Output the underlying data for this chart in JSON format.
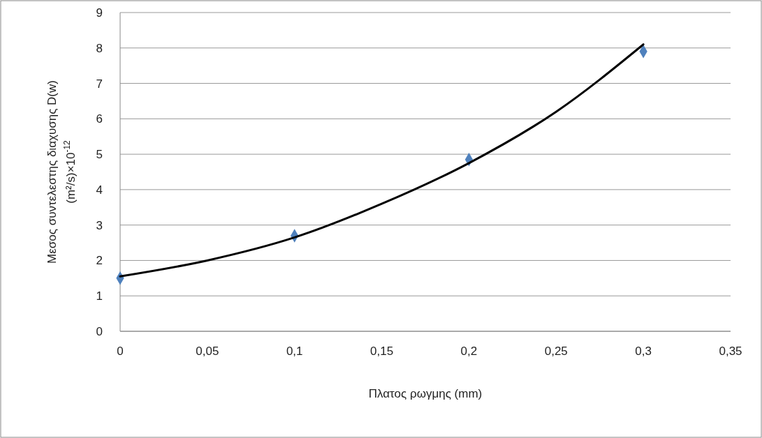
{
  "chart_data": {
    "type": "scatter",
    "xlabel": "Πλατος ρωγμης (mm)",
    "ylabel": "Μεσος συντελεστης διαχυσης D(w)\n(m²/s)×10$^{-12}$",
    "x": [
      0,
      0.1,
      0.2,
      0.3
    ],
    "series": [
      {
        "color": "#4f81bd",
        "values": [
          1.5,
          2.7,
          4.85,
          7.9
        ],
        "marker": "diamond"
      },
      {
        "type": "line",
        "color": "#000000",
        "x": [
          0,
          0.05,
          0.1,
          0.15,
          0.2,
          0.25,
          0.3
        ],
        "values": [
          1.55,
          2.0,
          2.65,
          3.6,
          4.75,
          6.2,
          8.1
        ],
        "marker": "none",
        "line_style": "solid"
      }
    ],
    "xlim": [
      0,
      0.35
    ],
    "xticks": [
      0,
      {
        "value": 0.05,
        "label": "0,05"
      },
      {
        "value": 0.1,
        "label": "0,1"
      },
      {
        "value": 0.15,
        "label": "0,15"
      },
      {
        "value": 0.2,
        "label": "0,2"
      },
      {
        "value": 0.25,
        "label": "0,25"
      },
      {
        "value": 0.3,
        "label": "0,3"
      },
      {
        "value": 0.35,
        "label": "0,35"
      }
    ],
    "ylim": [
      0,
      9
    ],
    "yticks": [
      0,
      1,
      2,
      3,
      4,
      5,
      6,
      7,
      8,
      9
    ],
    "grid": "y"
  }
}
